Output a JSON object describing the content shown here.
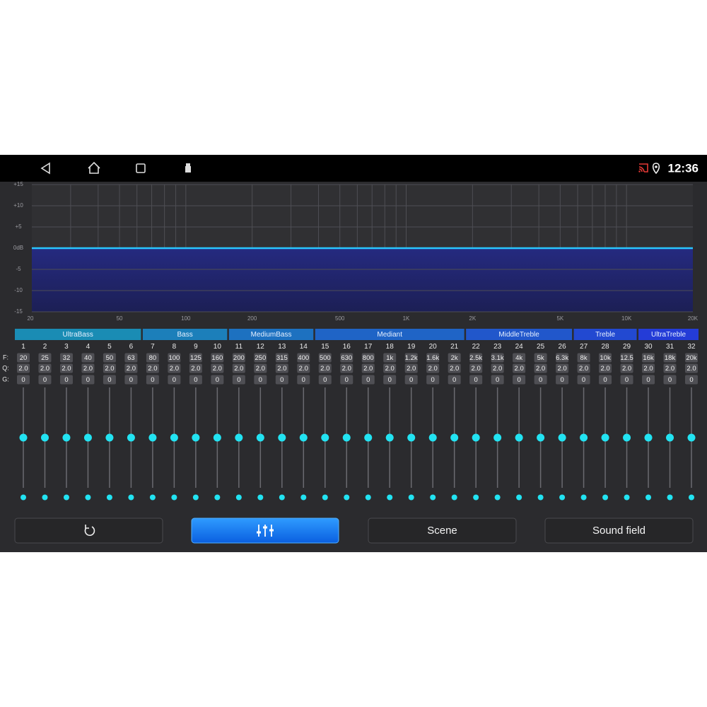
{
  "status_bar": {
    "time": "12:36"
  },
  "graph": {
    "ylim": [
      -15,
      15
    ],
    "yticks": [
      {
        "value": 15,
        "label": "+15"
      },
      {
        "value": 10,
        "label": "+10"
      },
      {
        "value": 5,
        "label": "+5"
      },
      {
        "value": 0,
        "label": "0dB"
      },
      -5,
      -10,
      -15
    ],
    "xlim": [
      20,
      20000
    ],
    "xscale": "log",
    "xticks": [
      20,
      50,
      100,
      200,
      500,
      {
        "value": 1000,
        "label": "1K"
      },
      {
        "value": 2000,
        "label": "2K"
      },
      {
        "value": 5000,
        "label": "5K"
      },
      {
        "value": 10000,
        "label": "10K"
      },
      {
        "value": 20000,
        "label": "20K"
      }
    ],
    "grid": true
  },
  "row_labels": [
    "F:",
    "Q:",
    "G:"
  ],
  "groups": [
    {
      "name": "UltraBass",
      "bands": [
        {
          "number": 1,
          "freq": "20",
          "q": "2.0",
          "gain": 0
        },
        {
          "number": 2,
          "freq": "25",
          "q": "2.0",
          "gain": 0
        },
        {
          "number": 3,
          "freq": "32",
          "q": "2.0",
          "gain": 0
        },
        {
          "number": 4,
          "freq": "40",
          "q": "2.0",
          "gain": 0
        },
        {
          "number": 5,
          "freq": "50",
          "q": "2.0",
          "gain": 0
        },
        {
          "number": 6,
          "freq": "63",
          "q": "2.0",
          "gain": 0
        }
      ]
    },
    {
      "name": "Bass",
      "bands": [
        {
          "number": 7,
          "freq": "80",
          "q": "2.0",
          "gain": 0
        },
        {
          "number": 8,
          "freq": "100",
          "q": "2.0",
          "gain": 0
        },
        {
          "number": 9,
          "freq": "125",
          "q": "2.0",
          "gain": 0
        },
        {
          "number": 10,
          "freq": "160",
          "q": "2.0",
          "gain": 0
        }
      ]
    },
    {
      "name": "MediumBass",
      "bands": [
        {
          "number": 11,
          "freq": "200",
          "q": "2.0",
          "gain": 0
        },
        {
          "number": 12,
          "freq": "250",
          "q": "2.0",
          "gain": 0
        },
        {
          "number": 13,
          "freq": "315",
          "q": "2.0",
          "gain": 0
        },
        {
          "number": 14,
          "freq": "400",
          "q": "2.0",
          "gain": 0
        }
      ]
    },
    {
      "name": "Mediant",
      "bands": [
        {
          "number": 15,
          "freq": "500",
          "q": "2.0",
          "gain": 0
        },
        {
          "number": 16,
          "freq": "630",
          "q": "2.0",
          "gain": 0
        },
        {
          "number": 17,
          "freq": "800",
          "q": "2.0",
          "gain": 0
        },
        {
          "number": 18,
          "freq": "1k",
          "q": "2.0",
          "gain": 0
        },
        {
          "number": 19,
          "freq": "1.2k",
          "q": "2.0",
          "gain": 0
        },
        {
          "number": 20,
          "freq": "1.6k",
          "q": "2.0",
          "gain": 0
        },
        {
          "number": 21,
          "freq": "2k",
          "q": "2.0",
          "gain": 0
        }
      ]
    },
    {
      "name": "MiddleTreble",
      "bands": [
        {
          "number": 22,
          "freq": "2.5k",
          "q": "2.0",
          "gain": 0
        },
        {
          "number": 23,
          "freq": "3.1k",
          "q": "2.0",
          "gain": 0
        },
        {
          "number": 24,
          "freq": "4k",
          "q": "2.0",
          "gain": 0
        },
        {
          "number": 25,
          "freq": "5k",
          "q": "2.0",
          "gain": 0
        },
        {
          "number": 26,
          "freq": "6.3k",
          "q": "2.0",
          "gain": 0
        }
      ]
    },
    {
      "name": "Treble",
      "bands": [
        {
          "number": 27,
          "freq": "8k",
          "q": "2.0",
          "gain": 0
        },
        {
          "number": 28,
          "freq": "10k",
          "q": "2.0",
          "gain": 0
        },
        {
          "number": 29,
          "freq": "12.5",
          "q": "2.0",
          "gain": 0
        }
      ]
    },
    {
      "name": "UltraTreble",
      "bands": [
        {
          "number": 30,
          "freq": "16k",
          "q": "2.0",
          "gain": 0
        },
        {
          "number": 31,
          "freq": "18k",
          "q": "2.0",
          "gain": 0
        },
        {
          "number": 32,
          "freq": "20k",
          "q": "2.0",
          "gain": 0
        }
      ]
    }
  ],
  "buttons": {
    "scene": "Scene",
    "sound_field": "Sound field"
  }
}
